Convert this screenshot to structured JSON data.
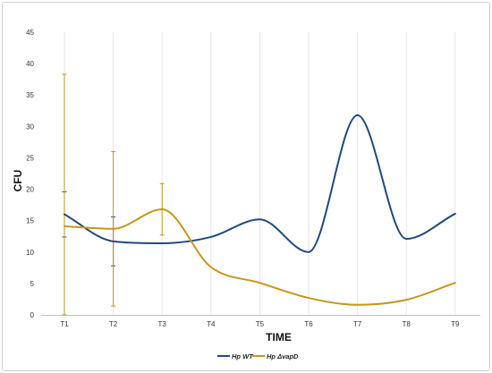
{
  "chart_data": {
    "type": "line",
    "xlabel": "TIME",
    "ylabel": "CFU",
    "categories": [
      "T1",
      "T2",
      "T3",
      "T4",
      "T5",
      "T6",
      "T7",
      "T8",
      "T9"
    ],
    "ylim": [
      0,
      45
    ],
    "yticks": [
      0,
      5,
      10,
      15,
      20,
      25,
      30,
      35,
      40,
      45
    ],
    "smooth": true,
    "grid": "vertical",
    "legend_position": "bottom",
    "series": [
      {
        "name": "Hp WT",
        "legend_italic": "Hp",
        "legend_rest": " WT",
        "color": "#1f497d",
        "values": [
          16,
          11.7,
          11.4,
          12.4,
          15.2,
          10,
          31.8,
          12.1,
          16.1
        ],
        "error": [
          3.6,
          3.9,
          null,
          null,
          null,
          null,
          null,
          null,
          null
        ]
      },
      {
        "name": "Hp ΔvapD",
        "legend_italic": "Hp",
        "legend_rest": " ΔvapD",
        "color": "#c4961a",
        "values": [
          14.1,
          13.7,
          16.8,
          7.6,
          5.1,
          2.7,
          1.6,
          2.4,
          5.1
        ],
        "error": [
          24.2,
          12.3,
          4.1,
          null,
          null,
          null,
          null,
          null,
          null
        ]
      }
    ]
  }
}
